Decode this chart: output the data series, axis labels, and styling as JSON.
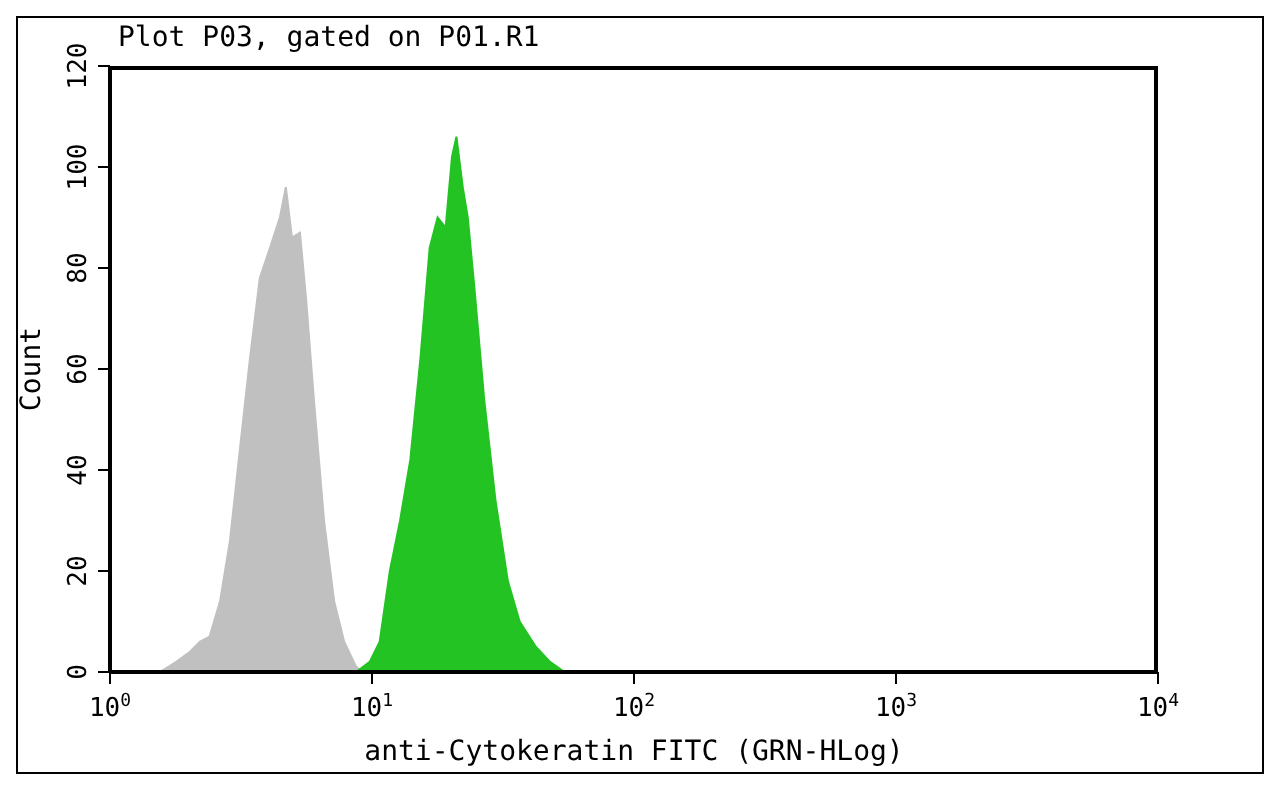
{
  "chart_data": {
    "type": "area",
    "title": "Plot P03, gated on P01.R1",
    "xlabel": "anti-Cytokeratin FITC (GRN-HLog)",
    "ylabel": "Count",
    "log": "x",
    "grid": false,
    "legend": false,
    "xlim": [
      1,
      10000
    ],
    "xticks": [
      {
        "value": 1,
        "label": "10$^{0}$"
      },
      {
        "value": 10,
        "label": "10$^{1}$"
      },
      {
        "value": 100,
        "label": "10$^{2}$"
      },
      {
        "value": 1000,
        "label": "10$^{3}$"
      },
      {
        "value": 10000,
        "label": "10$^{4}$"
      }
    ],
    "ylim": [
      0,
      120
    ],
    "yticks": [
      0,
      20,
      40,
      60,
      80,
      100,
      120
    ],
    "series": [
      {
        "color": "#c0c0c0",
        "x": [
          1.55,
          1.79,
          2.02,
          2.2,
          2.4,
          2.63,
          2.87,
          3.13,
          3.42,
          3.73,
          4.08,
          4.45,
          4.69,
          4.95,
          5.31,
          5.6,
          6.0,
          6.56,
          7.17,
          7.83,
          8.7,
          9.3
        ],
        "values": [
          0,
          2,
          4,
          6,
          7,
          14,
          26,
          44,
          62,
          78,
          84,
          90,
          96,
          86,
          87,
          74,
          54,
          30,
          14,
          6,
          1,
          0
        ]
      },
      {
        "color": "#22c322",
        "x": [
          8.7,
          9.8,
          10.7,
          11.7,
          12.8,
          14.0,
          15.3,
          16.6,
          17.8,
          19.1,
          20.2,
          21.0,
          22.2,
          23.2,
          24.5,
          26.8,
          29.6,
          33.0,
          36.6,
          42.2,
          47.8,
          54.3,
          62.0
        ],
        "values": [
          0,
          2,
          6,
          20,
          30,
          42,
          62,
          84,
          90,
          88,
          102,
          106,
          96,
          90,
          77,
          54,
          34,
          18,
          10,
          5,
          2,
          0,
          0
        ]
      }
    ]
  }
}
